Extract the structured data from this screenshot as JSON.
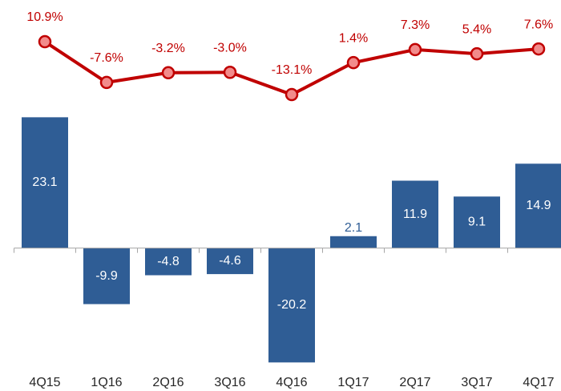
{
  "chart_data": {
    "type": "bar",
    "categories": [
      "4Q15",
      "1Q16",
      "2Q16",
      "3Q16",
      "4Q16",
      "1Q17",
      "2Q17",
      "3Q17",
      "4Q17"
    ],
    "ylim": [
      -21,
      24
    ],
    "y2lim": [
      -14,
      12
    ],
    "series": [
      {
        "type": "bar",
        "color": "#2f5d95",
        "values": [
          23.1,
          -9.9,
          -4.8,
          -4.6,
          -20.2,
          2.1,
          11.9,
          9.1,
          14.9
        ]
      },
      {
        "type": "line",
        "axis": "y2",
        "color": "#c00000",
        "marker_color": "#f28b8b",
        "values": [
          10.9,
          -7.6,
          -3.2,
          -3.0,
          -13.1,
          1.4,
          7.3,
          5.4,
          7.6
        ],
        "value_labels": [
          "10.9%",
          "-7.6%",
          "-3.2%",
          "-3.0%",
          "-13.1%",
          "1.4%",
          "7.3%",
          "5.4%",
          "7.6%"
        ]
      }
    ]
  }
}
